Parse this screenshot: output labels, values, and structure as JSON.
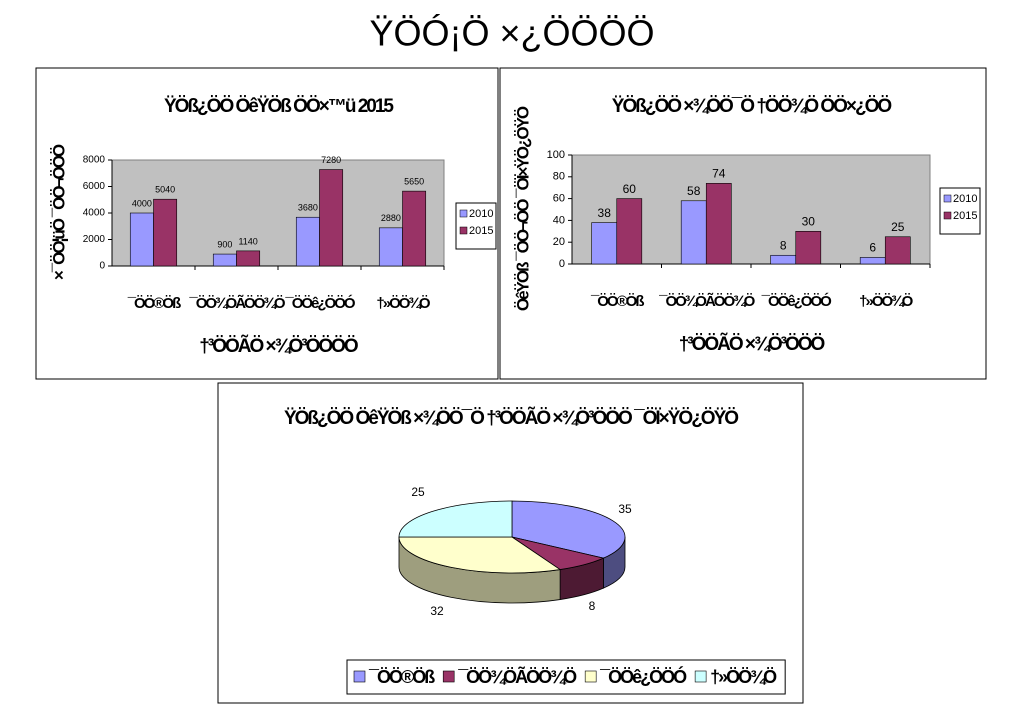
{
  "title": "ŸÖÓ¡Ö ×¿ÖÖÖÖ",
  "chart_data": [
    {
      "type": "bar",
      "title": "ŸÖß¿ÖÖ ÖêŸÖß ÖÖ×™ü 2015",
      "x_label": "†³ÖÖÃÖ ×¾Ö³ÖÖÖÖ",
      "y_label": "×¯ÖÖ¦üÖ ¯ÖÖ¬ÖÖÖ",
      "categories": [
        "¯ÖÖ®Öß",
        "¯ÖÖ¾ÖÃÖÖ¾Ö",
        "¯ÖÖê¿ÖÖÓ",
        "†»ÖÖ¾Ö"
      ],
      "series": [
        {
          "name": "2010",
          "color": "#9999ff",
          "values": [
            4000,
            900,
            3680,
            2880
          ]
        },
        {
          "name": "2015",
          "color": "#993366",
          "values": [
            5040,
            1140,
            7280,
            5650
          ]
        }
      ],
      "ylim": [
        0,
        8000
      ],
      "yticks": [
        0,
        2000,
        4000,
        6000,
        8000
      ],
      "legend": "right"
    },
    {
      "type": "bar",
      "title": "ŸÖß¿ÖÖ ×¾ÖÖ¯Ö †ÖÖ¾Ö ÖÖ×¿ÖÖ",
      "x_label": "†³ÖÖÃÖ ×¾Ö³ÖÖÖ",
      "y_label": "ÖêŸÖß ¯ÖÖ¬ÖÖ ¯ÖÏ×ŸÖ¿ÖŸÖ",
      "categories": [
        "¯ÖÖ®Öß",
        "¯ÖÖ¾ÖÃÖÖ¾Ö",
        "¯ÖÖê¿ÖÖÓ",
        "†»ÖÖ¾Ö"
      ],
      "series": [
        {
          "name": "2010",
          "color": "#9999ff",
          "values": [
            38,
            58,
            8,
            6
          ]
        },
        {
          "name": "2015",
          "color": "#993366",
          "values": [
            60,
            74,
            30,
            25
          ]
        }
      ],
      "ylim": [
        0,
        100
      ],
      "yticks": [
        0,
        20,
        40,
        60,
        80,
        100
      ],
      "legend": "right"
    },
    {
      "type": "pie",
      "title": "ŸÖß¿ÖÖ ÖêŸÖß ×¾ÖÖ¯Ö †³ÖÖÃÖ ×¾Ö³ÖÖÖ ¯ÖÏ×ŸÖ¿ÖŸÖ",
      "categories": [
        "¯ÖÖ®Öß",
        "¯ÖÖ¾ÖÃÖÖ¾Ö",
        "¯ÖÖê¿ÖÖÓ",
        "†»ÖÖ¾Ö"
      ],
      "values": [
        35,
        8,
        32,
        25
      ],
      "colors": [
        "#9999ff",
        "#993366",
        "#ffffcc",
        "#ccffff"
      ],
      "legend": "bottom"
    }
  ]
}
